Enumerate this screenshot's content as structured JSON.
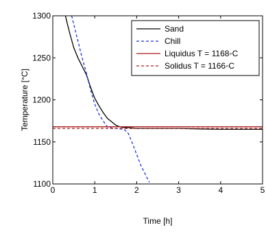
{
  "chart_data": {
    "type": "line",
    "xlabel": "Time [h]",
    "ylabel": "Temperature [°C]",
    "xlim": [
      0,
      5
    ],
    "ylim": [
      1100,
      1300
    ],
    "xticks": [
      "0",
      "1",
      "2",
      "3",
      "4",
      "5"
    ],
    "yticks": [
      "1100",
      "1150",
      "1200",
      "1250",
      "1300"
    ],
    "grid": false,
    "legend_position": "top-right",
    "series": [
      {
        "name": "Sand",
        "color": "#000000",
        "dash": "solid",
        "x": [
          0.3,
          0.35,
          0.4,
          0.5,
          0.6,
          0.7,
          0.8,
          0.9,
          1.0,
          1.1,
          1.2,
          1.3,
          1.4,
          1.5,
          1.6,
          1.7,
          1.8,
          1.9,
          2.0,
          2.5,
          3.0,
          3.5,
          4.0,
          4.5,
          5.0
        ],
        "y": [
          1300,
          1290,
          1280,
          1262,
          1250,
          1240,
          1230,
          1215,
          1202,
          1193,
          1185,
          1178,
          1174,
          1170,
          1168,
          1167,
          1167,
          1166.5,
          1166,
          1166,
          1166,
          1165.5,
          1165,
          1165,
          1165
        ]
      },
      {
        "name": "Chill",
        "color": "#1f2fe0",
        "dash": "dashed",
        "x": [
          0.45,
          0.5,
          0.6,
          0.7,
          0.8,
          0.9,
          1.0,
          1.1,
          1.2,
          1.3,
          1.4,
          1.5,
          1.6,
          1.7,
          1.8,
          1.9,
          2.0,
          2.1,
          2.2,
          2.3
        ],
        "y": [
          1300,
          1290,
          1270,
          1250,
          1232,
          1212,
          1195,
          1183,
          1175,
          1168,
          1166.5,
          1166,
          1165.5,
          1165,
          1160,
          1148,
          1135,
          1122,
          1112,
          1102
        ]
      },
      {
        "name": "Liquidus T = 1168◦C",
        "color": "#aa1a1a",
        "dash": "solid",
        "x": [
          0,
          5
        ],
        "y": [
          1168,
          1168
        ]
      },
      {
        "name": "Solidus T = 1166◦C",
        "color": "#aa1a1a",
        "dash": "dashed",
        "x": [
          0,
          5
        ],
        "y": [
          1166,
          1166
        ]
      }
    ]
  }
}
